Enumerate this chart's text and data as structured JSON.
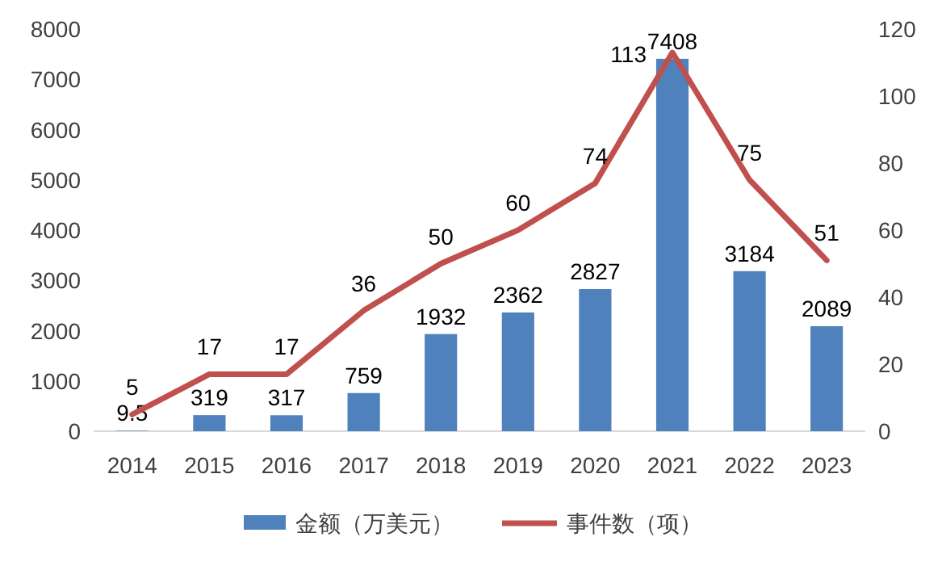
{
  "chart_data": {
    "type": "bar",
    "categories": [
      "2014",
      "2015",
      "2016",
      "2017",
      "2018",
      "2019",
      "2020",
      "2021",
      "2022",
      "2023"
    ],
    "series": [
      {
        "name": "金额（万美元）",
        "color": "#4f81bd",
        "values": [
          9.5,
          319,
          317,
          759,
          1932,
          2362,
          2827,
          7408,
          3184,
          2089
        ]
      },
      {
        "name": "事件数（项）",
        "type": "line",
        "axis": "y2",
        "color": "#c0504d",
        "marker": "none",
        "line_style": "solid",
        "values": [
          5,
          17,
          17,
          36,
          50,
          60,
          74,
          113,
          75,
          51
        ]
      }
    ],
    "ylim": [
      0,
      8000
    ],
    "yticks": [
      0,
      1000,
      2000,
      3000,
      4000,
      5000,
      6000,
      7000,
      8000
    ],
    "y2lim": [
      0,
      120
    ],
    "y2ticks": [
      0,
      20,
      40,
      60,
      80,
      100,
      120
    ],
    "data_labels": true,
    "legend": "bottom",
    "grid": false
  }
}
